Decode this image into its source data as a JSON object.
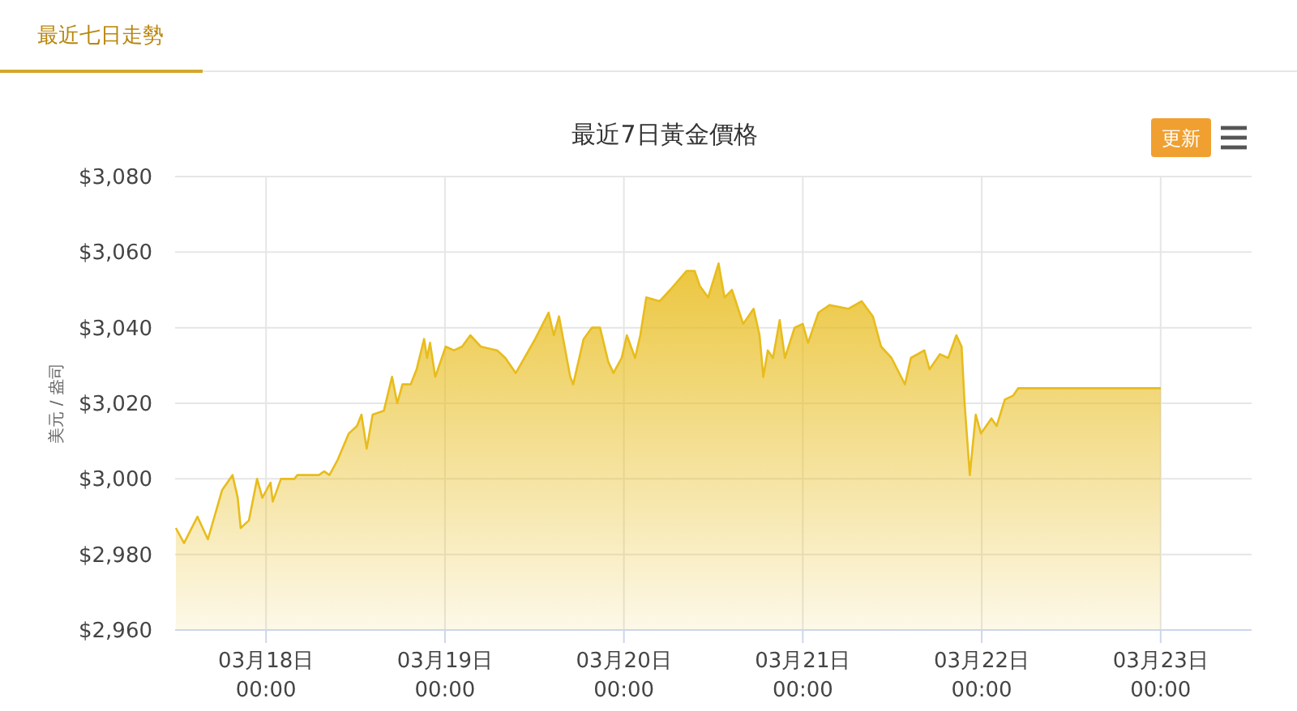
{
  "chart_data": {
    "type": "area",
    "title": "最近7日黃金價格",
    "ylabel": "美元 / 盎司",
    "annotations": [
      "最近七日走勢",
      "更新"
    ],
    "x": [
      "--03-17T11:54",
      "--03-17T13:00",
      "--03-17T14:48",
      "--03-17T16:12",
      "--03-17T18:06",
      "--03-17T19:30",
      "--03-17T20:12",
      "--03-17T20:36",
      "--03-17T21:42",
      "--03-17T22:48",
      "--03-17T23:30",
      "--03-18T00:36",
      "--03-18T00:54",
      "--03-18T02:00",
      "--03-18T03:48",
      "--03-18T04:12",
      "--03-18T07:06",
      "--03-18T07:48",
      "--03-18T08:30",
      "--03-18T09:36",
      "--03-18T11:06",
      "--03-18T12:12",
      "--03-18T12:48",
      "--03-18T13:30",
      "--03-18T14:18",
      "--03-18T15:48",
      "--03-18T16:54",
      "--03-18T17:36",
      "--03-18T18:18",
      "--03-18T19:24",
      "--03-18T20:12",
      "--03-18T21:12",
      "--03-18T21:36",
      "--03-18T22:00",
      "--03-18T22:42",
      "--03-19T00:06",
      "--03-19T01:12",
      "--03-19T02:18",
      "--03-19T03:24",
      "--03-19T04:48",
      "--03-19T07:00",
      "--03-19T08:06",
      "--03-19T09:30",
      "--03-19T12:06",
      "--03-19T13:54",
      "--03-19T14:36",
      "--03-19T15:18",
      "--03-19T16:48",
      "--03-19T17:12",
      "--03-19T18:36",
      "--03-19T19:42",
      "--03-19T20:48",
      "--03-19T21:54",
      "--03-19T22:36",
      "--03-19T23:42",
      "--03-20T00:24",
      "--03-20T01:30",
      "--03-20T02:12",
      "--03-20T03:00",
      "--03-20T04:48",
      "--03-20T06:12",
      "--03-20T08:24",
      "--03-20T09:30",
      "--03-20T10:12",
      "--03-20T11:18",
      "--03-20T12:42",
      "--03-20T13:30",
      "--03-20T14:30",
      "--03-20T16:00",
      "--03-20T17:24",
      "--03-20T18:12",
      "--03-20T18:42",
      "--03-20T19:18",
      "--03-20T20:00",
      "--03-20T20:54",
      "--03-20T21:36",
      "--03-20T22:54",
      "--03-21T00:00",
      "--03-21T00:42",
      "--03-21T02:06",
      "--03-21T03:36",
      "--03-21T06:06",
      "--03-21T07:54",
      "--03-21T09:24",
      "--03-21T10:30",
      "--03-21T11:54",
      "--03-21T13:42",
      "--03-21T14:30",
      "--03-21T16:18",
      "--03-21T17:00",
      "--03-21T18:24",
      "--03-21T19:30",
      "--03-21T20:36",
      "--03-21T21:18",
      "--03-21T21:42",
      "--03-21T22:24",
      "--03-21T23:12",
      "--03-21T23:54",
      "--03-22T01:18",
      "--03-22T02:00",
      "--03-22T03:06",
      "--03-22T04:12",
      "--03-22T04:54",
      "--03-23T00:00"
    ],
    "series": [
      {
        "color": "#e8bc1c",
        "values": [
          2987,
          2983,
          2990,
          2984,
          2997,
          3001,
          2995,
          2987,
          2989,
          3000,
          2995,
          2999,
          2994,
          3000,
          3000,
          3001,
          3001,
          3002,
          3001,
          3005,
          3012,
          3014,
          3017,
          3008,
          3017,
          3018,
          3027,
          3020,
          3025,
          3025,
          3029,
          3037,
          3032,
          3036,
          3027,
          3035,
          3034,
          3035,
          3038,
          3035,
          3034,
          3032,
          3028,
          3037,
          3044,
          3038,
          3043,
          3027,
          3025,
          3037,
          3040,
          3040,
          3031,
          3028,
          3032,
          3038,
          3032,
          3038,
          3048,
          3047,
          3050,
          3055,
          3055,
          3051,
          3048,
          3057,
          3048,
          3050,
          3041,
          3045,
          3038,
          3027,
          3034,
          3032,
          3042,
          3032,
          3040,
          3041,
          3036,
          3044,
          3046,
          3045,
          3047,
          3043,
          3035,
          3032,
          3025,
          3032,
          3034,
          3029,
          3033,
          3032,
          3038,
          3035,
          3020,
          3001,
          3017,
          3012,
          3016,
          3014,
          3021,
          3022,
          3024,
          3024
        ]
      }
    ],
    "xlim": [
      "--03-17T11:48",
      "--03-23T12:12"
    ],
    "xticks": [
      {
        "value": "--03-18T00:00",
        "label": "03月18日\n00:00"
      },
      {
        "value": "--03-19T00:00",
        "label": "03月19日\n00:00"
      },
      {
        "value": "--03-20T00:00",
        "label": "03月20日\n00:00"
      },
      {
        "value": "--03-21T00:00",
        "label": "03月21日\n00:00"
      },
      {
        "value": "--03-22T00:00",
        "label": "03月22日\n00:00"
      },
      {
        "value": "--03-23T00:00",
        "label": "03月23日\n00:00"
      }
    ],
    "ylim": [
      2960,
      3080
    ],
    "yticks": [
      {
        "value": 2960,
        "label": "$2,960"
      },
      {
        "value": 2980,
        "label": "$2,980"
      },
      {
        "value": 3000,
        "label": "$3,000"
      },
      {
        "value": 3020,
        "label": "$3,020"
      },
      {
        "value": 3040,
        "label": "$3,040"
      },
      {
        "value": 3060,
        "label": "$3,060"
      },
      {
        "value": 3080,
        "label": "$3,080"
      }
    ],
    "grid": true,
    "marker": "none"
  }
}
